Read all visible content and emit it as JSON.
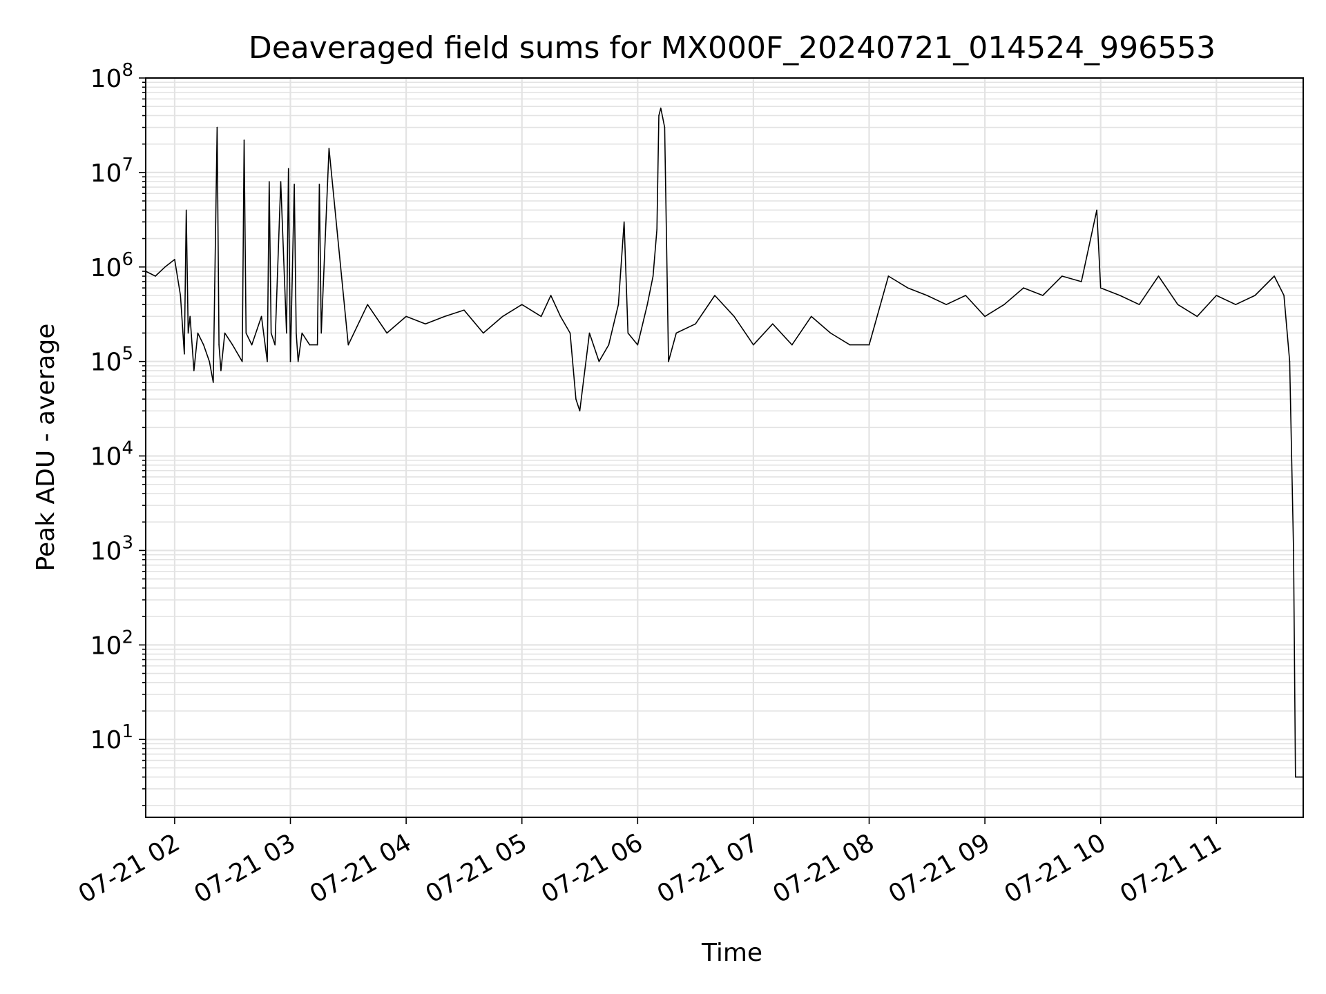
{
  "chart_data": {
    "type": "line",
    "title": "Deaveraged field sums for MX000F_20240721_014524_996553",
    "xlabel": "Time",
    "ylabel": "Peak ADU - average",
    "yscale": "log",
    "ylim": [
      1.5,
      100000000
    ],
    "xlim": [
      "07-21 01:45",
      "07-21 11:45"
    ],
    "x_tick_labels": [
      "07-21 02",
      "07-21 03",
      "07-21 04",
      "07-21 05",
      "07-21 06",
      "07-21 07",
      "07-21 08",
      "07-21 09",
      "07-21 10",
      "07-21 11"
    ],
    "y_tick_exponents": [
      "1",
      "2",
      "3",
      "4",
      "5",
      "6",
      "7",
      "8"
    ],
    "y_tick_base": "10",
    "grid": "on (major and minor)",
    "line_color": "#000000",
    "series": [
      {
        "x": [
          "07-21 01:45",
          "07-21 01:50",
          "07-21 01:55",
          "07-21 02:00",
          "07-21 02:03",
          "07-21 02:05",
          "07-21 02:06",
          "07-21 02:07",
          "07-21 02:08",
          "07-21 02:10",
          "07-21 02:12",
          "07-21 02:15",
          "07-21 02:18",
          "07-21 02:20",
          "07-21 02:22",
          "07-21 02:23",
          "07-21 02:24",
          "07-21 02:26",
          "07-21 02:30",
          "07-21 02:35",
          "07-21 02:36",
          "07-21 02:37",
          "07-21 02:40",
          "07-21 02:45",
          "07-21 02:48",
          "07-21 02:49",
          "07-21 02:50",
          "07-21 02:52",
          "07-21 02:55",
          "07-21 02:58",
          "07-21 02:59",
          "07-21 03:00",
          "07-21 03:02",
          "07-21 03:03",
          "07-21 03:04",
          "07-21 03:06",
          "07-21 03:10",
          "07-21 03:14",
          "07-21 03:15",
          "07-21 03:16",
          "07-21 03:20",
          "07-21 03:30",
          "07-21 03:40",
          "07-21 03:50",
          "07-21 04:00",
          "07-21 04:10",
          "07-21 04:20",
          "07-21 04:30",
          "07-21 04:40",
          "07-21 04:50",
          "07-21 05:00",
          "07-21 05:10",
          "07-21 05:15",
          "07-21 05:20",
          "07-21 05:25",
          "07-21 05:28",
          "07-21 05:30",
          "07-21 05:35",
          "07-21 05:40",
          "07-21 05:45",
          "07-21 05:50",
          "07-21 05:53",
          "07-21 05:55",
          "07-21 06:00",
          "07-21 06:05",
          "07-21 06:08",
          "07-21 06:10",
          "07-21 06:11",
          "07-21 06:12",
          "07-21 06:13",
          "07-21 06:14",
          "07-21 06:16",
          "07-21 06:20",
          "07-21 06:30",
          "07-21 06:40",
          "07-21 06:50",
          "07-21 07:00",
          "07-21 07:10",
          "07-21 07:20",
          "07-21 07:30",
          "07-21 07:40",
          "07-21 07:50",
          "07-21 08:00",
          "07-21 08:10",
          "07-21 08:20",
          "07-21 08:30",
          "07-21 08:40",
          "07-21 08:50",
          "07-21 09:00",
          "07-21 09:10",
          "07-21 09:20",
          "07-21 09:30",
          "07-21 09:40",
          "07-21 09:50",
          "07-21 09:58",
          "07-21 10:00",
          "07-21 10:10",
          "07-21 10:20",
          "07-21 10:30",
          "07-21 10:40",
          "07-21 10:50",
          "07-21 11:00",
          "07-21 11:10",
          "07-21 11:20",
          "07-21 11:30",
          "07-21 11:35",
          "07-21 11:38",
          "07-21 11:40",
          "07-21 11:41",
          "07-21 11:42",
          "07-21 11:43",
          "07-21 11:44",
          "07-21 11:45"
        ],
        "y": [
          900000,
          800000,
          1000000,
          1200000,
          500000,
          120000,
          4000000,
          200000,
          300000,
          80000,
          200000,
          150000,
          100000,
          60000,
          30000000,
          150000,
          80000,
          200000,
          150000,
          100000,
          22000000,
          200000,
          150000,
          300000,
          100000,
          8000000,
          200000,
          150000,
          8000000,
          200000,
          11000000,
          100000,
          7500000,
          200000,
          100000,
          200000,
          150000,
          150000,
          7500000,
          200000,
          18000000,
          150000,
          400000,
          200000,
          300000,
          250000,
          300000,
          350000,
          200000,
          300000,
          400000,
          300000,
          500000,
          300000,
          200000,
          40000,
          30000,
          200000,
          100000,
          150000,
          400000,
          3000000,
          200000,
          150000,
          400000,
          800000,
          2500000,
          40000000,
          48000000,
          38000000,
          30000000,
          100000,
          200000,
          250000,
          500000,
          300000,
          150000,
          250000,
          150000,
          300000,
          200000,
          150000,
          150000,
          800000,
          600000,
          500000,
          400000,
          500000,
          300000,
          400000,
          600000,
          500000,
          800000,
          700000,
          4000000,
          600000,
          500000,
          400000,
          800000,
          400000,
          300000,
          500000,
          400000,
          500000,
          800000,
          500000,
          100000,
          1000,
          4,
          4,
          4,
          4,
          4
        ]
      }
    ]
  }
}
